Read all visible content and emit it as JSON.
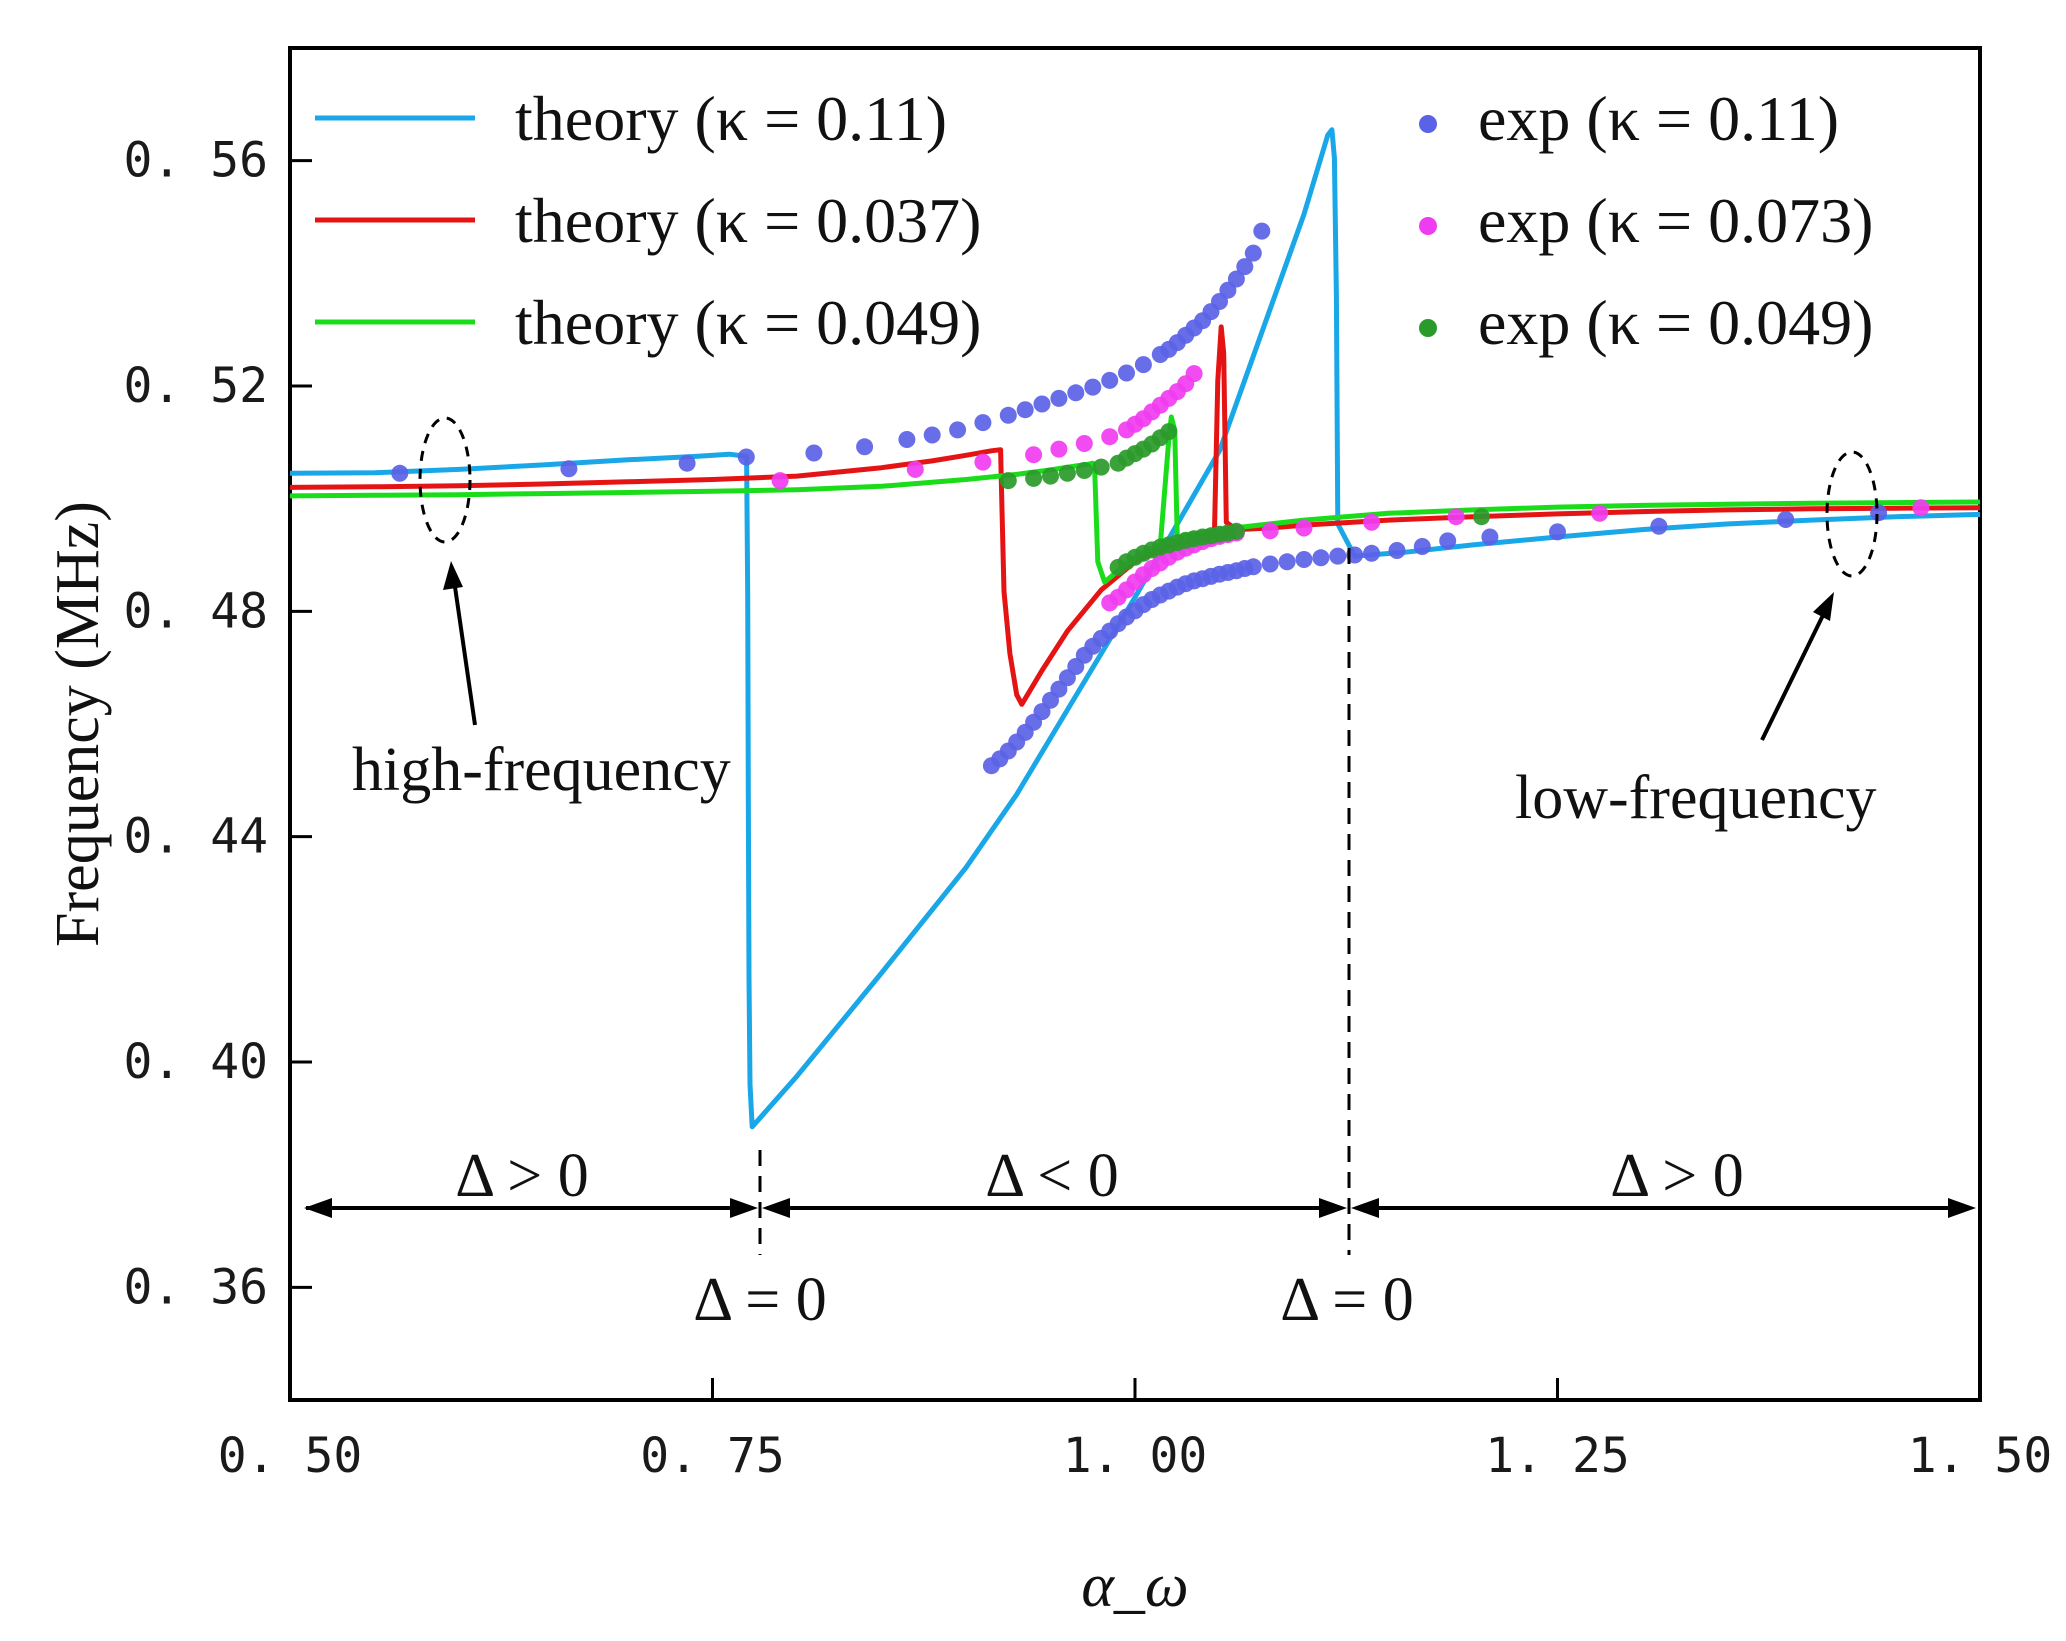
{
  "chart_data": {
    "type": "line",
    "title": "",
    "xlabel": "α_ω",
    "ylabel": "Frequency (MHz)",
    "xlim": [
      0.5,
      1.5
    ],
    "ylim": [
      0.34,
      0.58
    ],
    "xticks": [
      0.5,
      0.75,
      1.0,
      1.25,
      1.5
    ],
    "xtick_labels": [
      "0. 50",
      "0. 75",
      "1. 00",
      "1. 25",
      "1. 50"
    ],
    "yticks": [
      0.36,
      0.4,
      0.44,
      0.48,
      0.52,
      0.56
    ],
    "ytick_labels": [
      "0. 36",
      "0. 40",
      "0. 44",
      "0. 48",
      "0. 52",
      "0. 56"
    ],
    "grid": false,
    "legend_position": "top (two columns)",
    "series": [
      {
        "name": "theory (κ = 0.11)",
        "kind": "line",
        "color": "#1aa7e8",
        "x": [
          0.5,
          0.55,
          0.6,
          0.65,
          0.7,
          0.74,
          0.76,
          0.7702,
          0.7708,
          0.7712,
          0.7716,
          0.7722,
          0.7735,
          0.8,
          0.85,
          0.9,
          0.93,
          0.96,
          1.0,
          1.05,
          1.1,
          1.114,
          1.1165,
          1.118,
          1.1192,
          1.12,
          1.13,
          1.16,
          1.2,
          1.25,
          1.3,
          1.35,
          1.4,
          1.45,
          1.5
        ],
        "y": [
          0.5045,
          0.5046,
          0.5052,
          0.506,
          0.5069,
          0.5075,
          0.5079,
          0.5075,
          0.483,
          0.448,
          0.415,
          0.396,
          0.3885,
          0.3975,
          0.4158,
          0.4345,
          0.4475,
          0.4625,
          0.4825,
          0.5085,
          0.5505,
          0.5645,
          0.5655,
          0.5605,
          0.536,
          0.4955,
          0.4898,
          0.4905,
          0.4918,
          0.4932,
          0.4945,
          0.4955,
          0.4962,
          0.4968,
          0.4972
        ]
      },
      {
        "name": "theory (κ = 0.037)",
        "kind": "line",
        "color": "#e51414",
        "x": [
          0.5,
          0.55,
          0.6,
          0.65,
          0.7,
          0.75,
          0.8,
          0.85,
          0.88,
          0.9,
          0.915,
          0.9205,
          0.9212,
          0.9225,
          0.926,
          0.93,
          0.933,
          0.945,
          0.96,
          0.98,
          1.0,
          1.02,
          1.04,
          1.047,
          1.049,
          1.051,
          1.0525,
          1.054,
          1.06,
          1.08,
          1.1,
          1.15,
          1.2,
          1.25,
          1.3,
          1.35,
          1.4,
          1.45,
          1.5
        ],
        "y": [
          0.502,
          0.5021,
          0.5023,
          0.5026,
          0.503,
          0.5034,
          0.504,
          0.5055,
          0.5067,
          0.5077,
          0.5085,
          0.5087,
          0.4995,
          0.4835,
          0.4725,
          0.4652,
          0.4635,
          0.4695,
          0.4765,
          0.4838,
          0.4888,
          0.4915,
          0.4928,
          0.4935,
          0.521,
          0.5305,
          0.5258,
          0.4958,
          0.4945,
          0.4948,
          0.4953,
          0.4962,
          0.4968,
          0.4973,
          0.4977,
          0.498,
          0.4982,
          0.4983,
          0.4984
        ]
      },
      {
        "name": "theory (κ = 0.049)",
        "kind": "line",
        "color": "#1adc1a",
        "x": [
          0.5,
          0.55,
          0.6,
          0.65,
          0.7,
          0.75,
          0.8,
          0.85,
          0.9,
          0.93,
          0.95,
          0.965,
          0.972,
          0.975,
          0.9762,
          0.978,
          0.982,
          0.986,
          0.995,
          1.005,
          1.015,
          1.02,
          1.0215,
          1.0235,
          1.025,
          1.03,
          1.05,
          1.1,
          1.15,
          1.2,
          1.25,
          1.3,
          1.35,
          1.4,
          1.45,
          1.5
        ],
        "y": [
          0.5005,
          0.5006,
          0.5007,
          0.5009,
          0.5011,
          0.5013,
          0.5016,
          0.5022,
          0.5034,
          0.5043,
          0.5051,
          0.5058,
          0.5061,
          0.5063,
          0.5045,
          0.4888,
          0.4852,
          0.4862,
          0.4885,
          0.4905,
          0.4918,
          0.5105,
          0.5145,
          0.5122,
          0.4928,
          0.4935,
          0.4945,
          0.4962,
          0.4974,
          0.498,
          0.4985,
          0.4988,
          0.499,
          0.4992,
          0.4993,
          0.4994
        ]
      },
      {
        "name": "exp (κ = 0.11)",
        "kind": "scatter",
        "color": "#5a62e6",
        "x": [
          0.565,
          0.665,
          0.735,
          0.77,
          0.81,
          0.84,
          0.865,
          0.88,
          0.895,
          0.91,
          0.925,
          0.935,
          0.945,
          0.955,
          0.965,
          0.975,
          0.985,
          0.995,
          1.005,
          1.015,
          1.02,
          1.025,
          1.03,
          1.035,
          1.04,
          1.045,
          1.05,
          1.055,
          1.06,
          1.065,
          1.07,
          1.075,
          0.915,
          0.92,
          0.925,
          0.93,
          0.935,
          0.94,
          0.945,
          0.95,
          0.955,
          0.96,
          0.965,
          0.97,
          0.975,
          0.98,
          0.985,
          0.99,
          0.995,
          1.0,
          1.005,
          1.01,
          1.015,
          1.02,
          1.025,
          1.03,
          1.035,
          1.04,
          1.045,
          1.05,
          1.055,
          1.06,
          1.065,
          1.07,
          1.08,
          1.09,
          1.1,
          1.11,
          1.12,
          1.13,
          1.14,
          1.155,
          1.17,
          1.185,
          1.21,
          1.25,
          1.31,
          1.385,
          1.44
        ],
        "y": [
          0.5045,
          0.5053,
          0.5063,
          0.5074,
          0.5081,
          0.5092,
          0.5105,
          0.5113,
          0.5122,
          0.5135,
          0.5148,
          0.5158,
          0.5168,
          0.5178,
          0.5188,
          0.5198,
          0.521,
          0.5223,
          0.5238,
          0.5256,
          0.5265,
          0.5277,
          0.529,
          0.5303,
          0.5316,
          0.5332,
          0.535,
          0.537,
          0.539,
          0.5412,
          0.5436,
          0.5475,
          0.4526,
          0.4538,
          0.4552,
          0.4568,
          0.4585,
          0.4603,
          0.4622,
          0.4642,
          0.4662,
          0.4682,
          0.4702,
          0.4722,
          0.4738,
          0.4752,
          0.4765,
          0.4778,
          0.479,
          0.4801,
          0.4812,
          0.4821,
          0.4829,
          0.4836,
          0.4843,
          0.4849,
          0.4854,
          0.4858,
          0.4862,
          0.4866,
          0.4869,
          0.4872,
          0.4876,
          0.4879,
          0.4884,
          0.4888,
          0.4892,
          0.4895,
          0.4898,
          0.49,
          0.4903,
          0.4908,
          0.4915,
          0.4925,
          0.4932,
          0.4941,
          0.4951,
          0.4963,
          0.4975
        ]
      },
      {
        "name": "exp (κ = 0.073)",
        "kind": "scatter",
        "color": "#f03cf0",
        "x": [
          0.79,
          0.87,
          0.91,
          0.94,
          0.955,
          0.97,
          0.985,
          0.995,
          1.0,
          1.005,
          1.01,
          1.015,
          1.02,
          1.025,
          1.03,
          1.035,
          0.985,
          0.99,
          0.995,
          1.0,
          1.005,
          1.01,
          1.015,
          1.02,
          1.025,
          1.03,
          1.035,
          1.04,
          1.045,
          1.05,
          1.055,
          1.06,
          1.08,
          1.1,
          1.14,
          1.19,
          1.275,
          1.465
        ],
        "y": [
          0.5032,
          0.5052,
          0.5065,
          0.5078,
          0.5088,
          0.5098,
          0.511,
          0.5122,
          0.5132,
          0.5142,
          0.5154,
          0.5166,
          0.5178,
          0.519,
          0.5204,
          0.5222,
          0.4815,
          0.4825,
          0.4838,
          0.4852,
          0.4865,
          0.4876,
          0.4886,
          0.4896,
          0.4905,
          0.4912,
          0.4918,
          0.4924,
          0.4929,
          0.4933,
          0.4936,
          0.4939,
          0.4943,
          0.4948,
          0.4958,
          0.4968,
          0.4974,
          0.4984
        ]
      },
      {
        "name": "exp (κ = 0.049)",
        "kind": "scatter",
        "color": "#2a9a2a",
        "x": [
          0.925,
          0.94,
          0.95,
          0.96,
          0.97,
          0.98,
          0.99,
          0.995,
          1.0,
          1.005,
          1.01,
          1.015,
          1.02,
          0.99,
          0.995,
          1.0,
          1.005,
          1.01,
          1.015,
          1.02,
          1.025,
          1.03,
          1.035,
          1.04,
          1.045,
          1.05,
          1.055,
          1.06,
          1.205
        ],
        "y": [
          0.5032,
          0.5036,
          0.504,
          0.5045,
          0.505,
          0.5056,
          0.5063,
          0.5072,
          0.508,
          0.5088,
          0.5097,
          0.5108,
          0.5119,
          0.4878,
          0.4888,
          0.4896,
          0.4903,
          0.4909,
          0.4914,
          0.4918,
          0.4922,
          0.4926,
          0.4929,
          0.4932,
          0.4934,
          0.4937,
          0.4939,
          0.4942,
          0.4968
        ]
      }
    ],
    "annotations": {
      "high_label": "high-frequency",
      "low_label": "low-frequency",
      "delta_pos": "Δ > 0",
      "delta_neg": "Δ < 0",
      "delta_zero": "Δ = 0",
      "delta_boundaries_x": [
        0.7712,
        1.1192
      ]
    }
  }
}
